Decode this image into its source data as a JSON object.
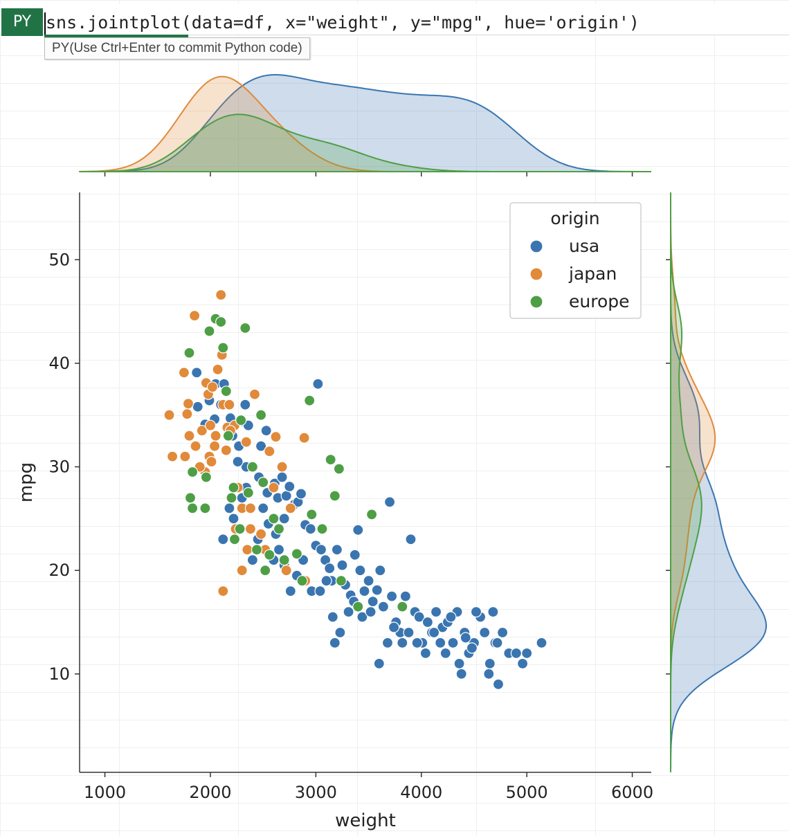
{
  "formula_bar": {
    "badge": "PY",
    "code": "sns.jointplot(data=df, x=\"weight\", y=\"mpg\", hue='origin')",
    "hint": "PY(Use Ctrl+Enter to commit Python code)"
  },
  "chart_data": {
    "type": "scatter",
    "subtype": "jointplot",
    "xlabel": "weight",
    "ylabel": "mpg",
    "xlim": [
      760,
      6180
    ],
    "ylim": [
      0.5,
      56.5
    ],
    "xticks": [
      1000,
      2000,
      3000,
      4000,
      5000,
      6000
    ],
    "yticks": [
      10,
      20,
      30,
      40,
      50
    ],
    "grid": false,
    "legend": {
      "title": "origin",
      "placement": "top-right"
    },
    "marginals": "kde",
    "series": [
      {
        "name": "usa",
        "color": "#3a75b0",
        "points": [
          [
            1870,
            39.1
          ],
          [
            1880,
            35.8
          ],
          [
            1950,
            34.1
          ],
          [
            1990,
            36.4
          ],
          [
            2040,
            34.6
          ],
          [
            2050,
            38.0
          ],
          [
            2100,
            36.0
          ],
          [
            2130,
            38.0
          ],
          [
            2190,
            34.7
          ],
          [
            2210,
            33.0
          ],
          [
            2270,
            32.0
          ],
          [
            2300,
            34.4
          ],
          [
            2330,
            36.0
          ],
          [
            2340,
            30.0
          ],
          [
            2360,
            34.0
          ],
          [
            2480,
            32.0
          ],
          [
            2530,
            33.5
          ],
          [
            2560,
            31.5
          ],
          [
            2610,
            28.4
          ],
          [
            2640,
            27.0
          ],
          [
            2680,
            29.0
          ],
          [
            2720,
            27.2
          ],
          [
            2750,
            28.1
          ],
          [
            2800,
            26.4
          ],
          [
            2830,
            26.6
          ],
          [
            2860,
            27.4
          ],
          [
            2900,
            24.4
          ],
          [
            2950,
            24.0
          ],
          [
            3000,
            22.4
          ],
          [
            3020,
            38.0
          ],
          [
            3050,
            22.0
          ],
          [
            3090,
            21.0
          ],
          [
            3130,
            20.2
          ],
          [
            3150,
            19.0
          ],
          [
            3200,
            22.0
          ],
          [
            3250,
            20.5
          ],
          [
            3280,
            18.6
          ],
          [
            3330,
            17.6
          ],
          [
            3370,
            21.5
          ],
          [
            3400,
            23.9
          ],
          [
            3420,
            20.0
          ],
          [
            3460,
            18.0
          ],
          [
            3500,
            19.0
          ],
          [
            3540,
            17.0
          ],
          [
            3580,
            18.1
          ],
          [
            3610,
            20.0
          ],
          [
            3640,
            16.5
          ],
          [
            3700,
            26.6
          ],
          [
            3720,
            17.5
          ],
          [
            3760,
            15.0
          ],
          [
            3800,
            14.0
          ],
          [
            3850,
            17.5
          ],
          [
            3900,
            23.0
          ],
          [
            3940,
            16.0
          ],
          [
            3980,
            15.5
          ],
          [
            4010,
            13.0
          ],
          [
            4060,
            15.0
          ],
          [
            4100,
            14.0
          ],
          [
            4140,
            16.0
          ],
          [
            4200,
            14.5
          ],
          [
            4250,
            15.0
          ],
          [
            4300,
            13.0
          ],
          [
            4340,
            16.0
          ],
          [
            4380,
            10.0
          ],
          [
            4410,
            14.0
          ],
          [
            4450,
            12.0
          ],
          [
            4500,
            13.0
          ],
          [
            4560,
            15.5
          ],
          [
            4600,
            14.0
          ],
          [
            4650,
            11.0
          ],
          [
            4700,
            13.0
          ],
          [
            4730,
            9.0
          ],
          [
            4770,
            14.0
          ],
          [
            4830,
            12.0
          ],
          [
            4900,
            12.0
          ],
          [
            4960,
            11.0
          ],
          [
            5000,
            12.0
          ],
          [
            5140,
            13.0
          ],
          [
            2220,
            25.0
          ],
          [
            2300,
            27.0
          ],
          [
            2450,
            23.0
          ],
          [
            2500,
            26.0
          ],
          [
            2550,
            24.5
          ],
          [
            2600,
            21.0
          ],
          [
            2650,
            22.0
          ],
          [
            2700,
            20.5
          ],
          [
            2760,
            18.0
          ],
          [
            2820,
            19.5
          ],
          [
            2880,
            21.0
          ],
          [
            2960,
            18.0
          ],
          [
            3040,
            18.0
          ],
          [
            3100,
            19.0
          ],
          [
            3160,
            15.5
          ],
          [
            3180,
            13.0
          ],
          [
            3230,
            14.0
          ],
          [
            3310,
            16.0
          ],
          [
            3360,
            17.0
          ],
          [
            3440,
            15.5
          ],
          [
            3520,
            16.0
          ],
          [
            3600,
            11.0
          ],
          [
            3680,
            13.0
          ],
          [
            3740,
            14.5
          ],
          [
            3820,
            13.0
          ],
          [
            3880,
            14.0
          ],
          [
            3960,
            13.0
          ],
          [
            4040,
            12.0
          ],
          [
            4120,
            14.0
          ],
          [
            4180,
            13.0
          ],
          [
            4230,
            12.0
          ],
          [
            4280,
            15.5
          ],
          [
            4360,
            11.0
          ],
          [
            4420,
            13.5
          ],
          [
            4480,
            12.5
          ],
          [
            4520,
            16.0
          ],
          [
            4640,
            10.0
          ],
          [
            4680,
            16.0
          ],
          [
            4720,
            13.0
          ],
          [
            2120,
            23.0
          ],
          [
            2180,
            26.0
          ],
          [
            2260,
            30.5
          ],
          [
            2340,
            28.0
          ],
          [
            2400,
            21.0
          ],
          [
            2460,
            29.0
          ],
          [
            2540,
            27.5
          ],
          [
            2620,
            23.5
          ],
          [
            2700,
            25.0
          ]
        ]
      },
      {
        "name": "japan",
        "color": "#e08a3a",
        "points": [
          [
            1610,
            35.0
          ],
          [
            1640,
            31.0
          ],
          [
            1750,
            39.1
          ],
          [
            1760,
            31.0
          ],
          [
            1780,
            35.1
          ],
          [
            1790,
            36.1
          ],
          [
            1800,
            33.0
          ],
          [
            1850,
            44.6
          ],
          [
            1860,
            32.0
          ],
          [
            1920,
            33.5
          ],
          [
            1950,
            29.5
          ],
          [
            1960,
            38.1
          ],
          [
            1980,
            37.0
          ],
          [
            1990,
            31.0
          ],
          [
            2000,
            34.0
          ],
          [
            2020,
            37.7
          ],
          [
            2040,
            32.0
          ],
          [
            2050,
            33.0
          ],
          [
            2070,
            39.4
          ],
          [
            2100,
            46.6
          ],
          [
            2110,
            40.8
          ],
          [
            2120,
            36.0
          ],
          [
            2150,
            31.6
          ],
          [
            2160,
            33.8
          ],
          [
            2180,
            36.0
          ],
          [
            2200,
            27.0
          ],
          [
            2230,
            34.0
          ],
          [
            2260,
            28.0
          ],
          [
            2300,
            26.0
          ],
          [
            2340,
            32.4
          ],
          [
            2380,
            24.0
          ],
          [
            2420,
            37.0
          ],
          [
            2480,
            23.5
          ],
          [
            2520,
            22.0
          ],
          [
            2560,
            31.5
          ],
          [
            2600,
            28.0
          ],
          [
            2620,
            32.9
          ],
          [
            2680,
            30.0
          ],
          [
            2720,
            20.0
          ],
          [
            2760,
            26.0
          ],
          [
            2890,
            32.8
          ],
          [
            2900,
            19.0
          ],
          [
            2120,
            18.0
          ],
          [
            2240,
            24.0
          ],
          [
            2300,
            20.0
          ],
          [
            2350,
            22.0
          ],
          [
            2380,
            26.0
          ],
          [
            1900,
            30.0
          ],
          [
            2010,
            30.5
          ],
          [
            2190,
            33.5
          ]
        ]
      },
      {
        "name": "europe",
        "color": "#4e9e45",
        "points": [
          [
            1800,
            41.0
          ],
          [
            1810,
            27.0
          ],
          [
            1830,
            29.5
          ],
          [
            1950,
            26.0
          ],
          [
            1960,
            29.0
          ],
          [
            1990,
            43.1
          ],
          [
            2050,
            44.3
          ],
          [
            2100,
            44.0
          ],
          [
            2120,
            41.5
          ],
          [
            2150,
            37.3
          ],
          [
            2170,
            33.0
          ],
          [
            2200,
            27.0
          ],
          [
            2230,
            23.0
          ],
          [
            2290,
            34.5
          ],
          [
            2330,
            43.4
          ],
          [
            2400,
            30.0
          ],
          [
            2480,
            35.0
          ],
          [
            2520,
            20.0
          ],
          [
            2560,
            21.5
          ],
          [
            2600,
            25.0
          ],
          [
            2650,
            24.0
          ],
          [
            2700,
            21.0
          ],
          [
            2820,
            21.6
          ],
          [
            2870,
            19.0
          ],
          [
            2940,
            36.4
          ],
          [
            2960,
            25.4
          ],
          [
            3060,
            24.0
          ],
          [
            3140,
            30.7
          ],
          [
            3180,
            27.2
          ],
          [
            3220,
            29.8
          ],
          [
            3240,
            19.0
          ],
          [
            3400,
            16.5
          ],
          [
            3530,
            25.4
          ],
          [
            3820,
            16.5
          ],
          [
            1830,
            26.0
          ],
          [
            2220,
            28.0
          ],
          [
            2280,
            24.0
          ],
          [
            2360,
            27.5
          ],
          [
            2440,
            22.0
          ],
          [
            2500,
            28.5
          ]
        ]
      }
    ]
  }
}
